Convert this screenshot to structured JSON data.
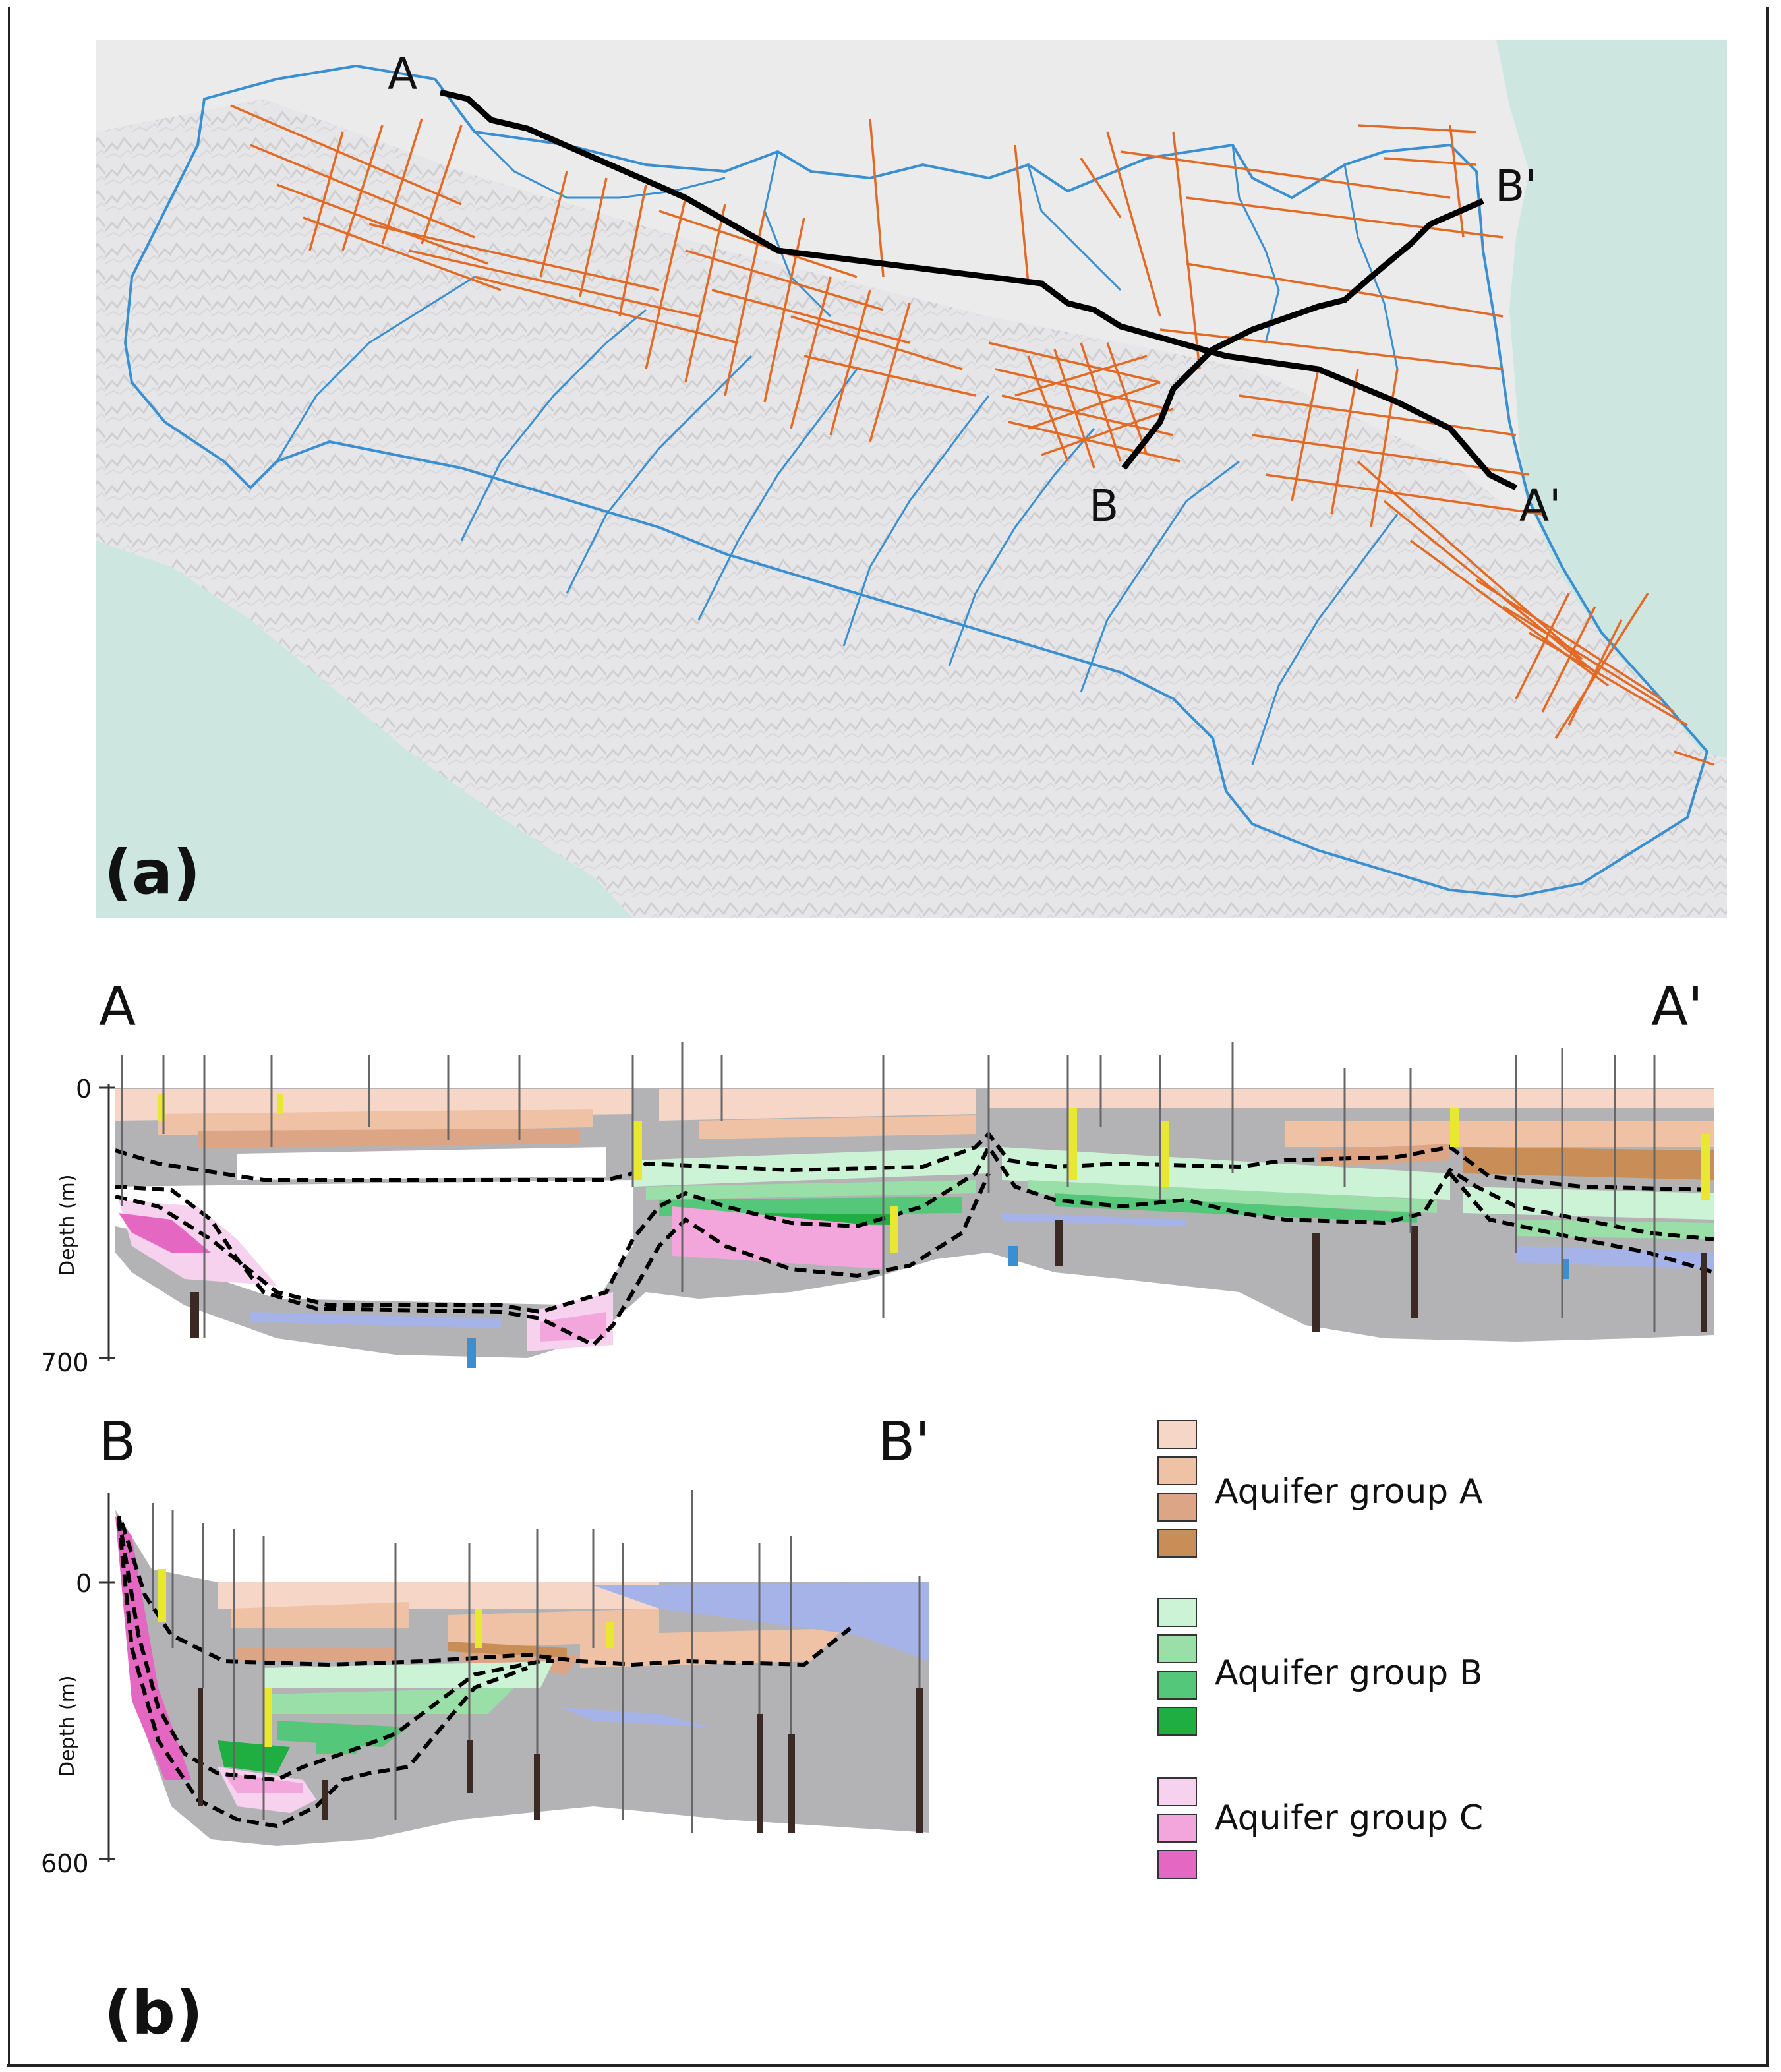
{
  "panel_a": {
    "label": "(a)",
    "section_AA": {
      "start": "A",
      "end": "A'"
    },
    "section_BB": {
      "start": "B",
      "end": "B'"
    },
    "colors": {
      "sea": "#cde6df",
      "land": "#e9e9ea",
      "relief": "#d2d2d4",
      "rivers": "#3a8fd0",
      "seismic": "#e36a24",
      "trace": "#000000"
    }
  },
  "panel_b": {
    "label": "(b)",
    "section_AA": {
      "start": "A",
      "end": "A'",
      "axis_label": "Depth (m)",
      "tick_top": "0",
      "tick_bottom": "700"
    },
    "section_BB": {
      "start": "B",
      "end": "B'",
      "axis_label": "Depth (m)",
      "tick_top": "0",
      "tick_bottom": "600"
    }
  },
  "legend": {
    "groups": [
      {
        "label": "Aquifer group A",
        "swatches": [
          "#f6d6c6",
          "#efc2a6",
          "#dba586",
          "#c98e58"
        ]
      },
      {
        "label": "Aquifer group B",
        "swatches": [
          "#cdf3d6",
          "#9bdfa8",
          "#55c77a",
          "#1fae42"
        ]
      },
      {
        "label": "Aquifer group C",
        "swatches": [
          "#f7d2ee",
          "#f2a6dc",
          "#e468c2"
        ]
      }
    ]
  },
  "layer_colors": {
    "gray": "#b3b3b5",
    "blue": "#a5b3e8",
    "well": "#3b2a24",
    "highlight": "#e8e830"
  }
}
